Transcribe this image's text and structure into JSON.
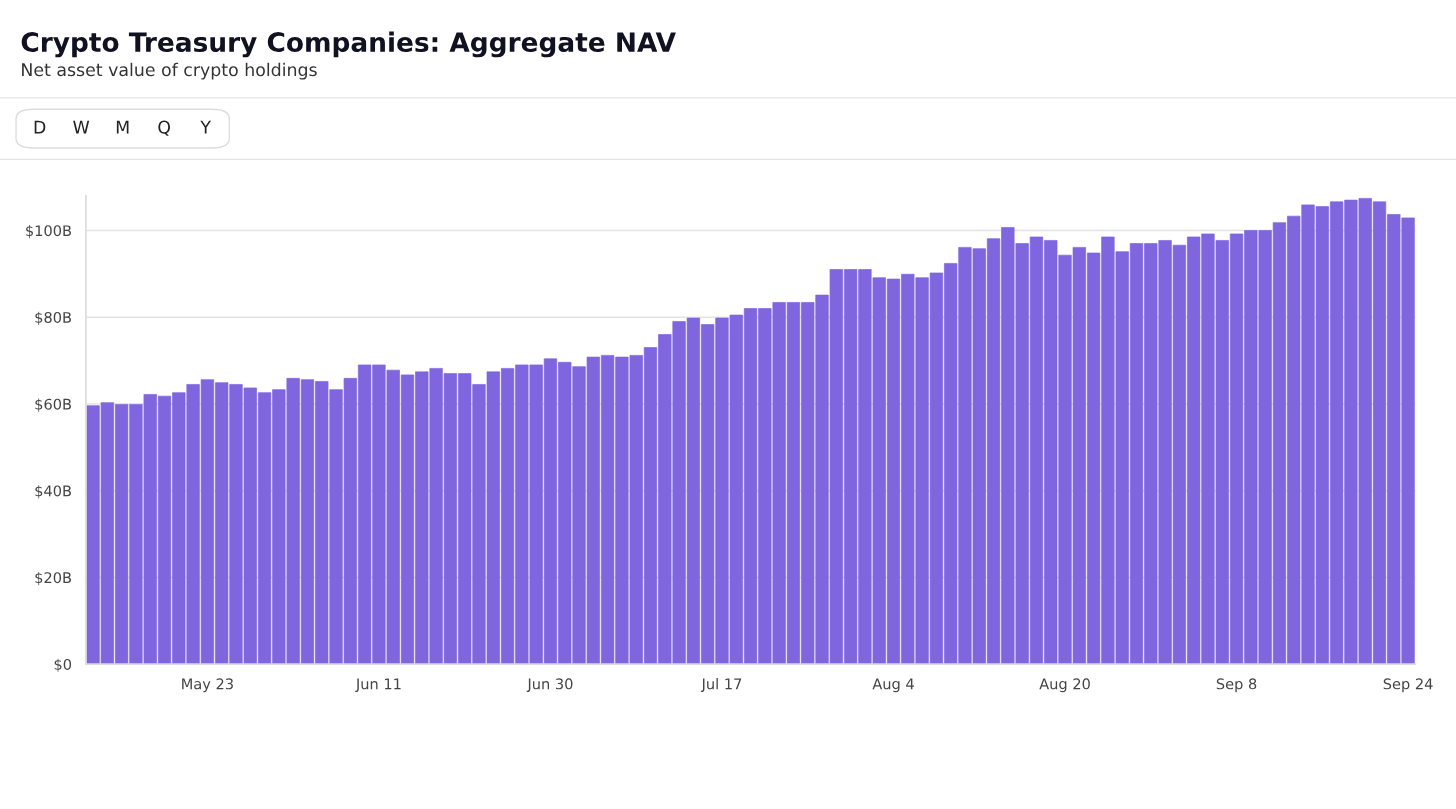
{
  "chart_data": {
    "type": "bar",
    "title": "Crypto Treasury Companies: Aggregate NAV",
    "subtitle": "Net asset value of crypto holdings",
    "annotations": [
      "D",
      "W",
      "M",
      "Q",
      "Y"
    ],
    "categories": [
      null,
      null,
      null,
      null,
      null,
      null,
      null,
      null,
      "May 23",
      null,
      null,
      null,
      null,
      null,
      null,
      null,
      null,
      null,
      null,
      null,
      "Jun 11",
      null,
      null,
      null,
      null,
      null,
      null,
      null,
      null,
      null,
      null,
      null,
      "Jun 30",
      null,
      null,
      null,
      null,
      null,
      null,
      null,
      null,
      null,
      null,
      null,
      "Jul 17",
      null,
      null,
      null,
      null,
      null,
      null,
      null,
      null,
      null,
      null,
      null,
      "Aug 4",
      null,
      null,
      null,
      null,
      null,
      null,
      null,
      null,
      null,
      null,
      null,
      "Aug 20",
      null,
      null,
      null,
      null,
      null,
      null,
      null,
      null,
      null,
      null,
      null,
      "Sep 8",
      null,
      null,
      null,
      null,
      null,
      null,
      null,
      null,
      null,
      null,
      null,
      "Sep 24"
    ],
    "values": [
      59.6,
      60.3,
      59.9,
      59.9,
      62.2,
      61.8,
      62.6,
      64.5,
      65.6,
      64.9,
      64.5,
      63.7,
      62.6,
      63.3,
      65.9,
      65.6,
      65.2,
      63.3,
      65.9,
      69.0,
      69.0,
      67.8,
      66.7,
      67.4,
      68.2,
      67.0,
      67.0,
      64.5,
      67.4,
      68.2,
      69.0,
      69.0,
      70.4,
      69.6,
      68.6,
      70.8,
      71.2,
      70.8,
      71.2,
      73.0,
      76.0,
      79.0,
      79.8,
      78.3,
      79.8,
      80.5,
      82.0,
      82.0,
      83.4,
      83.4,
      83.4,
      85.1,
      91.0,
      91.0,
      91.0,
      89.1,
      88.8,
      89.9,
      89.1,
      90.2,
      92.4,
      96.1,
      95.8,
      98.1,
      100.7,
      97.0,
      98.5,
      97.7,
      94.3,
      96.1,
      94.8,
      98.5,
      95.1,
      97.0,
      97.0,
      97.7,
      96.6,
      98.5,
      99.2,
      97.7,
      99.2,
      100.0,
      100.0,
      101.8,
      103.3,
      105.9,
      105.5,
      106.6,
      107.0,
      107.4,
      106.6,
      103.7,
      102.9
    ],
    "color": "#7f66df",
    "ylim": [
      0,
      108
    ],
    "yticks": [
      {
        "value": 0,
        "label": "$0"
      },
      {
        "value": 20,
        "label": "$20B"
      },
      {
        "value": 40,
        "label": "$40B"
      },
      {
        "value": 60,
        "label": "$60B"
      },
      {
        "value": 80,
        "label": "$80B"
      },
      {
        "value": 100,
        "label": "$100B"
      }
    ],
    "grid": "y",
    "legend": false
  }
}
